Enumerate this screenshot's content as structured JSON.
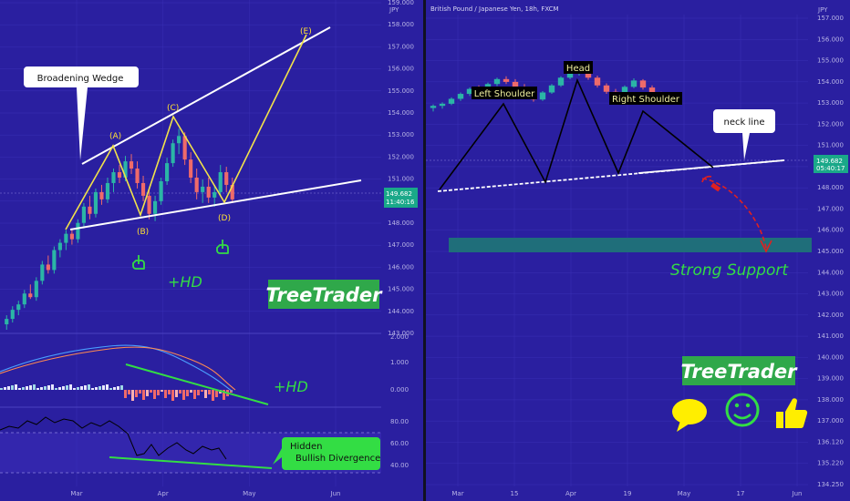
{
  "colors": {
    "background": "#2a1fa0",
    "up_candle": "#2bb5a6",
    "down_candle": "#ef6a6a",
    "wedge_lines": "#ffffff",
    "wave_lines": "#f2e24a",
    "divergence": "#33dd44",
    "support_zone": "#1f6e7a",
    "price_badge": "#1aa889",
    "arrow": "#e02020"
  },
  "left_chart": {
    "header_unit": "JPY",
    "price_ticks": [
      "159.000",
      "158.000",
      "157.000",
      "156.000",
      "155.000",
      "154.000",
      "153.000",
      "152.000",
      "151.000",
      "150.000",
      "148.000",
      "147.000",
      "146.000",
      "145.000",
      "144.000",
      "143.000"
    ],
    "price_badge": {
      "price": "149.682",
      "timer": "11:40:16"
    },
    "macd_ticks": [
      "2.000",
      "1.000",
      "0.000"
    ],
    "rsi_ticks": [
      "80.00",
      "60.00",
      "40.00"
    ],
    "time_ticks": [
      "Mar",
      "Apr",
      "May",
      "Jun"
    ],
    "wave_labels": [
      "(A)",
      "(B)",
      "(C)",
      "(D)",
      "(E)"
    ],
    "pattern_callout": "Broadening Wedge",
    "hd_label_main": "+HD",
    "hd_label_macd": "+HD",
    "divergence_callout_line1": "Hidden",
    "divergence_callout_line2": "Bullish Divergence",
    "brand": "TreeTrader"
  },
  "right_chart": {
    "title": "British Pound / Japanese Yen, 18h, FXCM",
    "header_unit": "JPY",
    "price_ticks": [
      "157.000",
      "156.000",
      "155.000",
      "154.000",
      "153.000",
      "152.000",
      "151.000",
      "150.000",
      "148.000",
      "147.000",
      "146.000",
      "145.000",
      "144.000",
      "143.000",
      "142.000",
      "141.000",
      "140.000",
      "139.000",
      "138.000",
      "137.000",
      "136.120",
      "135.220",
      "134.250"
    ],
    "price_badge": {
      "price": "149.682",
      "timer": "05:40:17"
    },
    "time_ticks": [
      "Mar",
      "15",
      "Apr",
      "19",
      "May",
      "17",
      "Jun"
    ],
    "labels": {
      "left_shoulder": "Left Shoulder",
      "head": "Head",
      "right_shoulder": "Right Shoulder",
      "neck_line": "neck line",
      "support": "Strong Support"
    },
    "brand": "TreeTrader",
    "icons": [
      "speech-bubble-icon",
      "smiley-icon",
      "thumbs-up-icon"
    ]
  },
  "chart_data": [
    {
      "type": "candlestick",
      "title": "",
      "xlabel": "",
      "ylabel": "",
      "ylim": [
        142.5,
        159.2
      ],
      "x": [
        "Mar",
        "Apr",
        "May",
        "Jun"
      ],
      "candles": [
        [
          142.8,
          143.3,
          142.5,
          143.1
        ],
        [
          143.1,
          143.8,
          142.9,
          143.6
        ],
        [
          143.6,
          144.1,
          143.3,
          143.9
        ],
        [
          143.9,
          144.7,
          143.7,
          144.5
        ],
        [
          144.5,
          145.0,
          144.2,
          144.3
        ],
        [
          144.3,
          145.4,
          144.1,
          145.2
        ],
        [
          145.2,
          146.3,
          145.0,
          146.1
        ],
        [
          146.1,
          146.6,
          145.6,
          145.8
        ],
        [
          145.8,
          147.1,
          145.6,
          146.9
        ],
        [
          146.9,
          147.5,
          146.5,
          147.3
        ],
        [
          147.3,
          148.0,
          146.9,
          147.8
        ],
        [
          147.8,
          148.1,
          147.2,
          147.5
        ],
        [
          147.5,
          148.6,
          147.3,
          148.4
        ],
        [
          148.4,
          149.5,
          148.1,
          149.3
        ],
        [
          149.3,
          149.9,
          148.6,
          148.9
        ],
        [
          148.9,
          150.3,
          148.7,
          150.1
        ],
        [
          150.1,
          150.5,
          149.4,
          149.7
        ],
        [
          149.7,
          150.9,
          149.5,
          150.6
        ],
        [
          150.6,
          151.4,
          150.1,
          151.2
        ],
        [
          151.2,
          151.6,
          150.6,
          150.9
        ],
        [
          150.9,
          152.1,
          150.7,
          151.8
        ],
        [
          151.8,
          152.2,
          151.1,
          151.4
        ],
        [
          151.4,
          151.8,
          150.3,
          150.6
        ],
        [
          150.6,
          151.0,
          149.6,
          149.9
        ],
        [
          149.9,
          150.3,
          148.6,
          148.9
        ],
        [
          148.9,
          149.9,
          148.5,
          149.6
        ],
        [
          149.6,
          150.9,
          149.4,
          150.7
        ],
        [
          150.7,
          152.0,
          150.5,
          151.7
        ],
        [
          151.7,
          153.0,
          151.5,
          152.8
        ],
        [
          152.8,
          153.6,
          152.2,
          153.2
        ],
        [
          153.2,
          153.4,
          151.6,
          151.9
        ],
        [
          151.9,
          152.3,
          150.6,
          150.9
        ],
        [
          150.9,
          151.4,
          149.7,
          150.1
        ],
        [
          150.1,
          150.8,
          149.5,
          150.4
        ],
        [
          150.4,
          150.9,
          149.5,
          149.8
        ],
        [
          149.8,
          150.5,
          149.3,
          150.1
        ],
        [
          150.1,
          151.6,
          149.9,
          151.2
        ],
        [
          151.2,
          151.5,
          150.1,
          150.5
        ],
        [
          150.5,
          150.9,
          149.5,
          149.7
        ]
      ],
      "series": [
        {
          "name": "",
          "points": [
            [
              148.0,
              0
            ],
            [
              151.7,
              4
            ],
            [
              148.5,
              6
            ],
            [
              153.4,
              8
            ],
            [
              149.5,
              12
            ],
            [
              157.4,
              17
            ]
          ]
        }
      ]
    },
    {
      "type": "candlestick",
      "title": "British Pound / Japanese Yen, 18h, FXCM",
      "xlabel": "",
      "ylabel": "",
      "ylim": [
        134.25,
        157.0
      ],
      "x": [
        "Mar",
        "15",
        "Apr",
        "19",
        "May",
        "17",
        "Jun"
      ],
      "candles": [
        [
          148.4,
          148.9,
          147.9,
          148.7
        ],
        [
          148.7,
          149.2,
          148.3,
          149.0
        ],
        [
          149.0,
          149.9,
          148.8,
          149.7
        ],
        [
          149.7,
          150.6,
          149.4,
          150.4
        ],
        [
          150.4,
          151.3,
          150.1,
          151.1
        ],
        [
          151.1,
          151.6,
          150.6,
          150.8
        ],
        [
          150.8,
          152.0,
          150.6,
          151.8
        ],
        [
          151.8,
          152.7,
          151.5,
          152.5
        ],
        [
          152.5,
          152.9,
          151.8,
          152.1
        ],
        [
          152.1,
          152.5,
          151.2,
          151.4
        ],
        [
          151.4,
          151.8,
          150.2,
          150.5
        ],
        [
          150.5,
          150.9,
          149.3,
          149.6
        ],
        [
          149.6,
          150.8,
          149.4,
          150.6
        ],
        [
          150.6,
          151.8,
          150.4,
          151.6
        ],
        [
          151.6,
          152.9,
          151.4,
          152.7
        ],
        [
          152.7,
          153.8,
          152.5,
          153.6
        ],
        [
          153.6,
          154.2,
          153.0,
          153.9
        ],
        [
          153.9,
          154.1,
          152.4,
          152.7
        ],
        [
          152.7,
          153.0,
          151.3,
          151.6
        ],
        [
          151.6,
          151.9,
          150.4,
          150.7
        ],
        [
          150.7,
          151.1,
          149.9,
          150.3
        ],
        [
          150.3,
          151.6,
          150.1,
          151.4
        ],
        [
          151.4,
          152.6,
          151.2,
          152.3
        ],
        [
          152.3,
          152.5,
          151.0,
          151.3
        ],
        [
          151.3,
          151.6,
          150.1,
          150.4
        ],
        [
          150.4,
          150.7,
          149.6,
          149.8
        ]
      ],
      "series": [
        {
          "name": "",
          "points": [
            [
              149.0,
              0
            ],
            [
              152.4,
              3
            ],
            [
              149.7,
              5
            ],
            [
              154.4,
              7
            ],
            [
              149.9,
              9
            ],
            [
              152.3,
              10
            ],
            [
              150.3,
              12
            ]
          ]
        }
      ],
      "support_zone": [
        145.2,
        146.1
      ]
    }
  ]
}
